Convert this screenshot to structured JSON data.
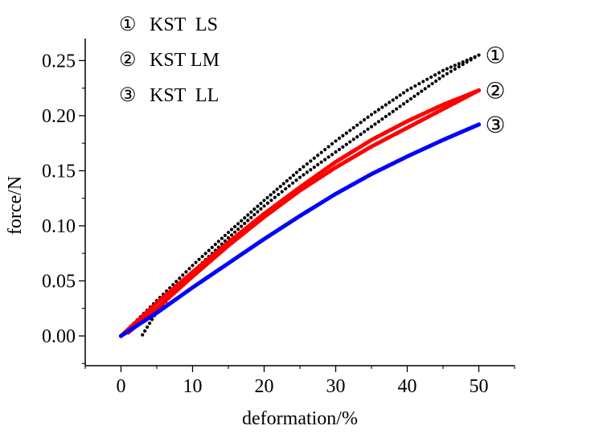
{
  "chart_data": {
    "type": "scatter",
    "title": "",
    "xlabel": "deformation/%",
    "ylabel": "force/N",
    "xlim": [
      -5,
      55
    ],
    "ylim": [
      -0.027,
      0.27
    ],
    "xticks": [
      0,
      10,
      20,
      30,
      40,
      50
    ],
    "xtick_labels": [
      "0",
      "10",
      "20",
      "30",
      "40",
      "50"
    ],
    "yticks": [
      0.0,
      0.05,
      0.1,
      0.15,
      0.2,
      0.25
    ],
    "ytick_labels": [
      "0.00",
      "0.05",
      "0.10",
      "0.15",
      "0.20",
      "0.25"
    ],
    "grid": false,
    "legend_position": "top-left",
    "legend": [
      {
        "marker": "①",
        "label": "KST  LS"
      },
      {
        "marker": "②",
        "label": "KST LM"
      },
      {
        "marker": "③",
        "label": "KST  LL"
      }
    ],
    "series": [
      {
        "name": "KST  LS",
        "tag": "①",
        "color": "#000000",
        "loading": [
          [
            0,
            0.0
          ],
          [
            5,
            0.032
          ],
          [
            10,
            0.064
          ],
          [
            15,
            0.094
          ],
          [
            20,
            0.123
          ],
          [
            25,
            0.151
          ],
          [
            30,
            0.177
          ],
          [
            35,
            0.201
          ],
          [
            40,
            0.223
          ],
          [
            45,
            0.241
          ],
          [
            50,
            0.255
          ]
        ],
        "unloading": [
          [
            50,
            0.255
          ],
          [
            45,
            0.236
          ],
          [
            40,
            0.213
          ],
          [
            35,
            0.19
          ],
          [
            30,
            0.167
          ],
          [
            25,
            0.144
          ],
          [
            20,
            0.118
          ],
          [
            15,
            0.089
          ],
          [
            10,
            0.058
          ],
          [
            5,
            0.022
          ],
          [
            3,
            0.001
          ]
        ]
      },
      {
        "name": "KST LM",
        "tag": "②",
        "color": "#ff0000",
        "loading": [
          [
            0,
            0.0
          ],
          [
            5,
            0.03
          ],
          [
            10,
            0.058
          ],
          [
            15,
            0.085
          ],
          [
            20,
            0.111
          ],
          [
            25,
            0.135
          ],
          [
            30,
            0.158
          ],
          [
            35,
            0.178
          ],
          [
            40,
            0.195
          ],
          [
            45,
            0.21
          ],
          [
            50,
            0.223
          ]
        ],
        "unloading": [
          [
            50,
            0.223
          ],
          [
            45,
            0.206
          ],
          [
            40,
            0.189
          ],
          [
            35,
            0.172
          ],
          [
            30,
            0.153
          ],
          [
            25,
            0.132
          ],
          [
            20,
            0.108
          ],
          [
            15,
            0.082
          ],
          [
            10,
            0.054
          ],
          [
            5,
            0.025
          ],
          [
            1,
            0.003
          ]
        ]
      },
      {
        "name": "KST  LL",
        "tag": "③",
        "color": "#0000ff",
        "loading": [
          [
            0,
            0.0
          ],
          [
            5,
            0.021
          ],
          [
            10,
            0.044
          ],
          [
            15,
            0.066
          ],
          [
            20,
            0.088
          ],
          [
            25,
            0.109
          ],
          [
            30,
            0.129
          ],
          [
            35,
            0.147
          ],
          [
            40,
            0.163
          ],
          [
            45,
            0.178
          ],
          [
            50,
            0.192
          ]
        ],
        "unloading": []
      }
    ]
  }
}
